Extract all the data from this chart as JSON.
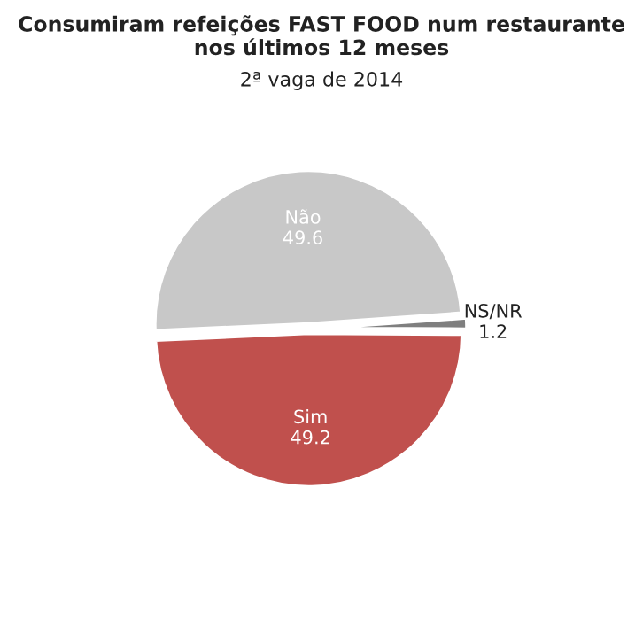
{
  "chart_data": {
    "type": "pie",
    "title": "Consumiram refeições FAST FOOD num restaurante\nnos últimos 12 meses",
    "subtitle": "2ª vaga de 2014",
    "categories": [
      "Não",
      "Sim",
      "NS/NR"
    ],
    "values": [
      49.6,
      49.2,
      1.2
    ],
    "colors": [
      "#c8c8c8",
      "#c0504d",
      "#7f7f7f"
    ],
    "data_labels": true,
    "legend": false
  }
}
